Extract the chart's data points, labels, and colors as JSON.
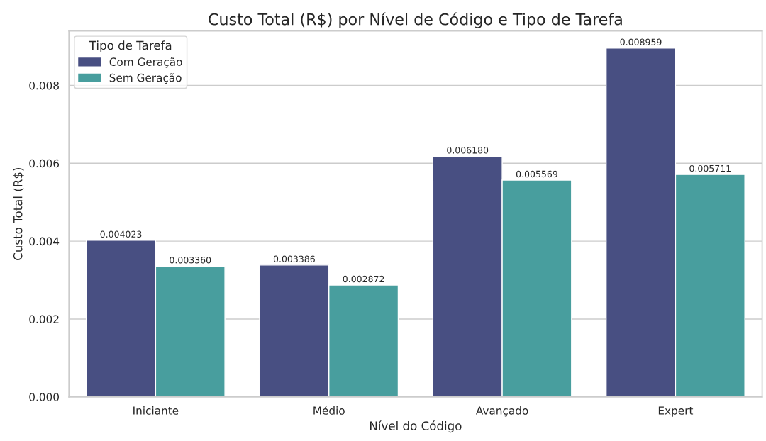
{
  "chart_data": {
    "type": "bar",
    "title": "Custo Total (R$) por Nível de Código e Tipo de Tarefa",
    "xlabel": "Nível do Código",
    "ylabel": "Custo Total (R$)",
    "legend_title": "Tipo de Tarefa",
    "categories": [
      "Iniciante",
      "Médio",
      "Avançado",
      "Expert"
    ],
    "series": [
      {
        "name": "Com Geração",
        "color": "#484f82",
        "values": [
          0.004023,
          0.003386,
          0.00618,
          0.008959
        ],
        "value_labels": [
          "0.004023",
          "0.003386",
          "0.006180",
          "0.008959"
        ]
      },
      {
        "name": "Sem Geração",
        "color": "#489e9e",
        "values": [
          0.00336,
          0.002872,
          0.005569,
          0.005711
        ],
        "value_labels": [
          "0.003360",
          "0.002872",
          "0.005569",
          "0.005711"
        ]
      }
    ],
    "ylim": [
      0,
      0.0094
    ],
    "yticks": [
      {
        "value": 0,
        "label": "0.000"
      },
      {
        "value": 0.002,
        "label": "0.002"
      },
      {
        "value": 0.004,
        "label": "0.004"
      },
      {
        "value": 0.006,
        "label": "0.006"
      },
      {
        "value": 0.008,
        "label": "0.008"
      }
    ],
    "grid": "y",
    "legend": "top left"
  }
}
